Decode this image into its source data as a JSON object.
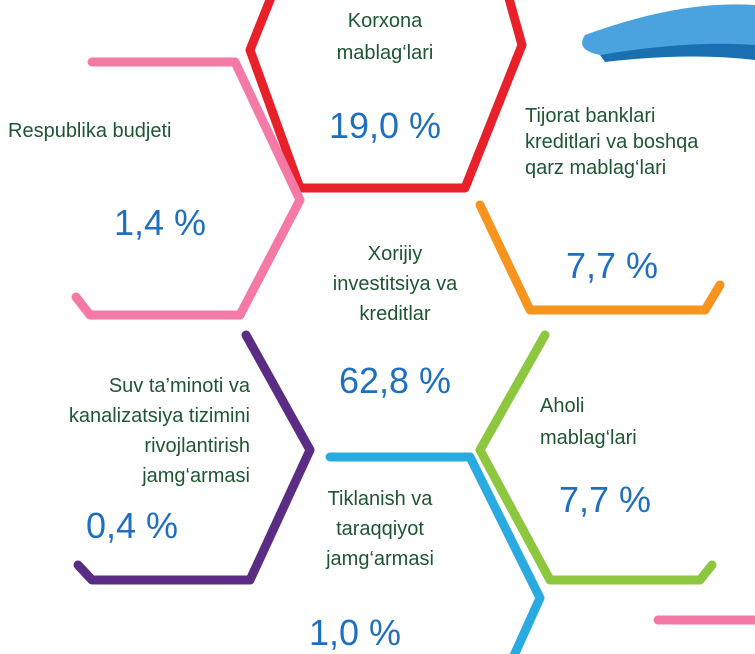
{
  "items": [
    {
      "label": [
        "Korxona",
        "mablag‘lari"
      ],
      "value": "19,0 %"
    },
    {
      "label": [
        "Respublika budjeti"
      ],
      "value": "1,4 %"
    },
    {
      "label": [
        "Tijorat banklari",
        "kreditlari va boshqa",
        "qarz mablag‘lari"
      ],
      "value": "7,7 %"
    },
    {
      "label": [
        "Xorijiy",
        "investitsiya va",
        "kreditlar"
      ],
      "value": "62,8 %"
    },
    {
      "label": [
        "Suv ta’minoti va",
        "kanalizatsiya tizimini",
        "rivojlantirish",
        "jamg‘armasi"
      ],
      "value": "0,4 %"
    },
    {
      "label": [
        "Aholi",
        "mablag‘lari"
      ],
      "value": "7,7 %"
    },
    {
      "label": [
        "Tiklanish va",
        "taraqqiyot",
        "jamg‘armasi"
      ],
      "value": "1,0 %"
    }
  ]
}
